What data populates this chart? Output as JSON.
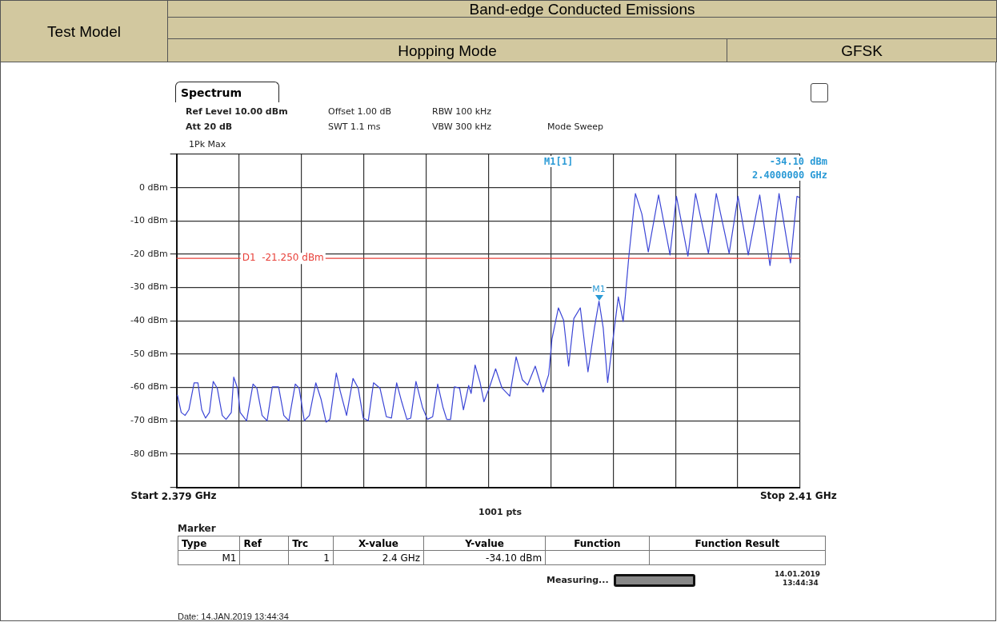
{
  "chart_data": {
    "type": "line",
    "title": "Band-edge Conducted Emissions",
    "xlim": [
      2.379,
      2.41
    ],
    "ylim": [
      -90,
      10
    ],
    "xticks": [
      {
        "value": 2.379,
        "label": "2.379"
      },
      {
        "value": 2.3821,
        "label": null
      },
      {
        "value": 2.3852,
        "label": null
      },
      {
        "value": 2.3883,
        "label": null
      },
      {
        "value": 2.3914,
        "label": null
      },
      {
        "value": 2.3945,
        "label": null
      },
      {
        "value": 2.3976,
        "label": null
      },
      {
        "value": 2.4007,
        "label": null
      },
      {
        "value": 2.4038,
        "label": null
      },
      {
        "value": 2.4069,
        "label": null
      },
      {
        "value": 2.41,
        "label": "2.41"
      }
    ],
    "yticks": [
      {
        "value": 10,
        "label": null
      },
      {
        "value": 0,
        "label": "0 dBm"
      },
      {
        "value": -10,
        "label": "-10 dBm"
      },
      {
        "value": -20,
        "label": "-20 dBm"
      },
      {
        "value": -30,
        "label": "-30 dBm"
      },
      {
        "value": -40,
        "label": "-40 dBm"
      },
      {
        "value": -50,
        "label": "-50 dBm"
      },
      {
        "value": -60,
        "label": "-60 dBm"
      },
      {
        "value": -70,
        "label": "-70 dBm"
      },
      {
        "value": -80,
        "label": "-80 dBm"
      },
      {
        "value": -90,
        "label": null
      }
    ],
    "grid": true,
    "series": [
      {
        "color": "#3c46d6",
        "x": [
          2.37904,
          2.37923,
          2.37942,
          2.37961,
          2.37987,
          2.38006,
          2.38025,
          2.38044,
          2.38063,
          2.38082,
          2.38102,
          2.38127,
          2.38146,
          2.38172,
          2.38184,
          2.38203,
          2.38216,
          2.38248,
          2.3828,
          2.38299,
          2.38325,
          2.3835,
          2.38376,
          2.38407,
          2.38433,
          2.38458,
          2.3849,
          2.38509,
          2.38535,
          2.3856,
          2.38592,
          2.38618,
          2.38643,
          2.38662,
          2.38694,
          2.38713,
          2.38745,
          2.38777,
          2.38803,
          2.38828,
          2.38853,
          2.38879,
          2.38911,
          2.38943,
          2.38968,
          2.38994,
          2.39019,
          2.39045,
          2.39064,
          2.3909,
          2.39122,
          2.39147,
          2.39173,
          2.39198,
          2.39224,
          2.39243,
          2.39262,
          2.39281,
          2.39307,
          2.39326,
          2.39352,
          2.39364,
          2.39384,
          2.39409,
          2.39428,
          2.39454,
          2.39486,
          2.39518,
          2.39556,
          2.39588,
          2.39619,
          2.39645,
          2.39683,
          2.39722,
          2.3975,
          2.39766,
          2.39798,
          2.39824,
          2.39849,
          2.39875,
          2.39907,
          2.39945,
          2.39977,
          2.4,
          2.40021,
          2.40043,
          2.40073,
          2.40096,
          2.4012,
          2.40149,
          2.40181,
          2.40213,
          2.40245,
          2.40296,
          2.40353,
          2.40385,
          2.40442,
          2.4048,
          2.40544,
          2.40583,
          2.40647,
          2.40691,
          2.40742,
          2.40799,
          2.4085,
          2.40895,
          2.40952,
          2.40984,
          2.40997
        ],
        "values": [
          -62.2,
          -67.5,
          -68.4,
          -66.7,
          -58.6,
          -58.6,
          -66.7,
          -69.2,
          -67.5,
          -58.2,
          -60.2,
          -68.4,
          -69.6,
          -67.5,
          -56.9,
          -60.2,
          -67.5,
          -70,
          -59,
          -60.2,
          -68.4,
          -70,
          -59.8,
          -59.8,
          -68.4,
          -70,
          -59,
          -60.2,
          -70,
          -68.4,
          -58.6,
          -63.5,
          -70.4,
          -69.6,
          -55.7,
          -61,
          -68.4,
          -57.3,
          -60.2,
          -69.2,
          -70,
          -58.6,
          -60.2,
          -68.8,
          -69.2,
          -58.6,
          -64.3,
          -69.6,
          -69.2,
          -58.2,
          -65.9,
          -69.6,
          -68.8,
          -59,
          -65.9,
          -69.6,
          -69.6,
          -59.8,
          -60.2,
          -66.7,
          -59.4,
          -61.8,
          -53.3,
          -58.6,
          -64.3,
          -60.2,
          -54.4,
          -60.2,
          -62.6,
          -50.8,
          -57.7,
          -59.3,
          -53.6,
          -61.4,
          -56.1,
          -45.5,
          -36.1,
          -39.8,
          -53.6,
          -39.3,
          -36.1,
          -55.3,
          -42.2,
          -34.1,
          -42.2,
          -58.5,
          -43.8,
          -32.8,
          -40.2,
          -20.2,
          -1.8,
          -7.9,
          -19.3,
          -2.2,
          -20.2,
          -2.6,
          -20.6,
          -1.8,
          -19.8,
          -1.8,
          -19.8,
          -2.6,
          -20.2,
          -2.2,
          -23.4,
          -1.8,
          -22.6,
          -2.6,
          -3
        ]
      }
    ],
    "ref_lines": [
      {
        "axis": "y",
        "value": -21.25,
        "label": "D1  -21.250 dBm",
        "color": "#e8413a"
      }
    ],
    "annotations": [
      "Test Model",
      "Hopping Mode",
      "GFSK",
      "Spectrum",
      "Ref Level 10.00 dBm",
      "Offset 1.00 dB",
      "RBW 100 kHz",
      "Att 20 dB",
      "SWT 1.1 ms",
      "VBW 300 kHz",
      "Mode Sweep",
      "1Pk Max",
      "M1[1]",
      "-34.10 dBm",
      "2.4000000 GHz",
      "1001 pts",
      "Marker",
      "Type",
      "Ref",
      "Trc",
      "X-value",
      "Y-value",
      "Function",
      "Function Result",
      "M1",
      "1",
      "2.4 GHz",
      "-34.10 dBm",
      "Measuring...",
      "14.01.2019",
      "13:44:34",
      "Date: 14.JAN.2019  13:44:34",
      {
        "text": "M1",
        "x": 2.4,
        "y": -34.1
      },
      "Start",
      "GHz",
      "Stop",
      "GHz"
    ]
  }
}
